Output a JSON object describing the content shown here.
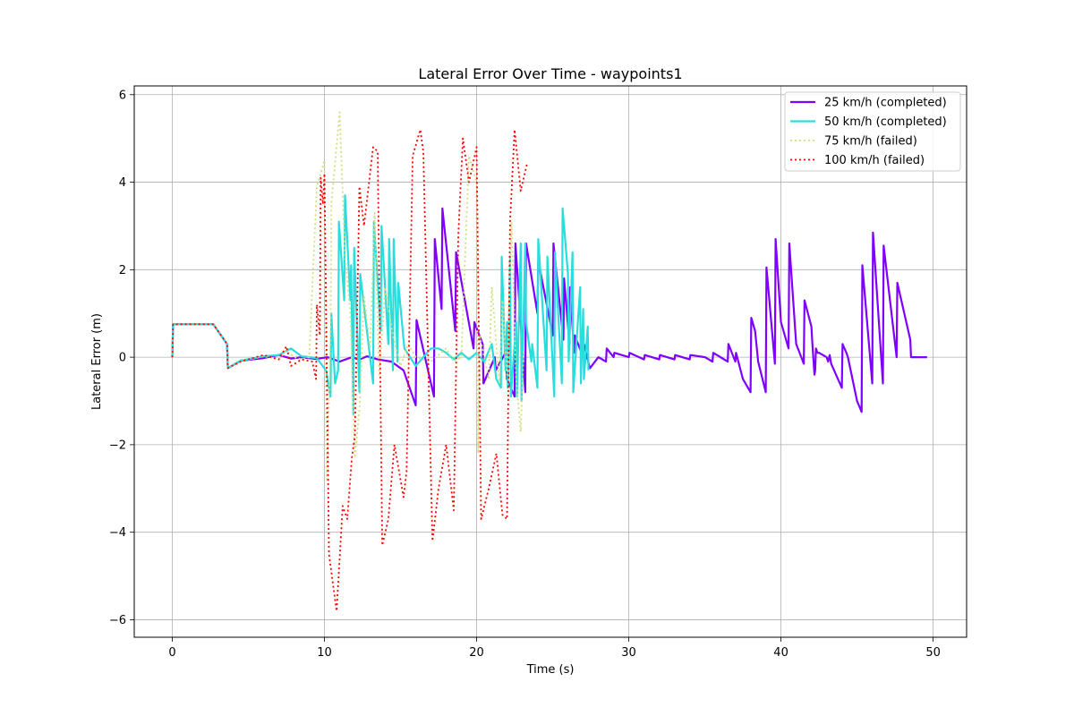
{
  "chart_data": {
    "type": "line",
    "title": "Lateral Error Over Time - waypoints1",
    "xlabel": "Time (s)",
    "ylabel": "Lateral Error (m)",
    "xlim": [
      -2.5,
      52.2
    ],
    "ylim": [
      -6.4,
      6.2
    ],
    "xticks": [
      0,
      10,
      20,
      30,
      40,
      50
    ],
    "yticks": [
      -6,
      -4,
      -2,
      0,
      2,
      4,
      6
    ],
    "xtick_labels": [
      "0",
      "10",
      "20",
      "30",
      "40",
      "50"
    ],
    "ytick_labels": [
      "−6",
      "−4",
      "−2",
      "0",
      "2",
      "4",
      "6"
    ],
    "grid": true,
    "legend_position": "upper-right",
    "series": [
      {
        "name": "25 km/h (completed)",
        "color": "#8000ff",
        "style": "solid",
        "x": [
          0,
          0.05,
          2.7,
          3.6,
          3.65,
          4.5,
          6,
          7,
          7.8,
          8.5,
          9.5,
          10.2,
          11,
          11.8,
          12.3,
          12.8,
          13.5,
          14.4,
          15.2,
          16,
          16.05,
          17.2,
          17.25,
          17.7,
          17.75,
          18.6,
          18.65,
          19.8,
          19.85,
          20.4,
          20.45,
          21.2,
          21.25,
          21.9,
          22,
          22.5,
          22.55,
          23.2,
          23.25,
          24,
          24.05,
          25,
          25.05,
          25.7,
          25.75,
          26.1,
          26.15,
          26.4,
          26.45,
          27,
          27.05,
          27.4,
          27.45,
          28,
          28.5,
          28.55,
          29,
          29.05,
          30,
          30.05,
          31,
          31.05,
          32,
          32.05,
          33,
          33.05,
          34,
          34.05,
          35,
          35.5,
          35.55,
          36.5,
          36.55,
          37,
          37.05,
          37.5,
          38,
          38.05,
          38.3,
          38.5,
          39,
          39.05,
          39.6,
          39.65,
          40,
          40.5,
          40.55,
          40.9,
          41,
          41.5,
          41.55,
          42,
          42.05,
          42.2,
          42.25,
          42.3,
          42.4,
          42.5,
          43,
          43.1,
          43.2,
          43.3,
          44,
          44.05,
          44.3,
          44.4,
          45,
          45.3,
          45.35,
          46,
          46.05,
          46.7,
          46.75,
          47.6,
          47.65,
          48.5,
          48.55,
          49.6
        ],
        "y": [
          0,
          0.75,
          0.75,
          0.3,
          -0.25,
          -0.08,
          -0.02,
          0.05,
          -0.03,
          0,
          -0.04,
          0,
          -0.1,
          0,
          -0.05,
          0.02,
          -0.05,
          -0.1,
          -0.3,
          -1.1,
          0.85,
          -0.9,
          2.7,
          1.1,
          3.4,
          0.6,
          2.4,
          0.2,
          0.8,
          0.3,
          -0.6,
          0,
          -0.3,
          0.1,
          -0.5,
          -0.9,
          2.6,
          -0.8,
          2.6,
          1,
          2.2,
          0.5,
          2.6,
          0.4,
          1.8,
          0.3,
          1.6,
          0.1,
          0.5,
          0,
          0.3,
          -0.2,
          -0.25,
          0,
          -0.1,
          0.2,
          0,
          0.1,
          0,
          0.1,
          -0.05,
          0.05,
          -0.05,
          0.05,
          -0.05,
          0.05,
          -0.05,
          0.05,
          0,
          -0.1,
          0.1,
          -0.1,
          0.3,
          -0.1,
          0.1,
          -0.5,
          -0.8,
          0.9,
          0.6,
          -0.1,
          -0.8,
          2.05,
          -0.15,
          2.7,
          0.8,
          0.2,
          2.6,
          0.8,
          0.3,
          -0.15,
          1.3,
          0.7,
          0.4,
          -0.4,
          -0.3,
          0.2,
          0.1,
          0.1,
          0,
          -0.1,
          0.05,
          -0.15,
          -0.7,
          0.3,
          0.1,
          0,
          -1,
          -1.25,
          2.1,
          -0.6,
          2.85,
          -0.6,
          2.55,
          0,
          1.7,
          0.4,
          0,
          0
        ]
      },
      {
        "name": "50 km/h (completed)",
        "color": "#2adddd",
        "style": "solid",
        "x": [
          0,
          0.05,
          2.7,
          3.6,
          3.65,
          4.5,
          6,
          7,
          7.8,
          8.5,
          9.5,
          10.1,
          10.4,
          10.45,
          10.7,
          10.9,
          10.95,
          11.3,
          11.35,
          11.7,
          11.75,
          11.9,
          11.95,
          12.3,
          12.35,
          13.2,
          13.25,
          13.7,
          13.75,
          14.2,
          14.25,
          14.5,
          14.55,
          14.8,
          14.85,
          15.2,
          15.25,
          16,
          17,
          17.5,
          18,
          18.5,
          19,
          19.5,
          20,
          20.5,
          21,
          21.3,
          21.6,
          21.65,
          21.9,
          22,
          22.05,
          22.2,
          22.25,
          22.6,
          22.65,
          22.9,
          22.95,
          23.2,
          23.25,
          23.6,
          23.65,
          24,
          24.05,
          24.6,
          24.65,
          25.1,
          25.15,
          25.6,
          25.65,
          26,
          26.05,
          26.3,
          26.35,
          26.8,
          26.85,
          27,
          27.05,
          27.3,
          27.35
        ],
        "y": [
          0,
          0.75,
          0.75,
          0.3,
          -0.25,
          -0.08,
          0.02,
          0.05,
          0.2,
          0.02,
          -0.02,
          -0.3,
          -0.9,
          1,
          -0.6,
          -0.3,
          3.1,
          1.3,
          3.7,
          1.3,
          2.1,
          -1.3,
          2.5,
          -0.8,
          1.9,
          -0.6,
          3.1,
          0.6,
          3,
          0.3,
          2.7,
          -0.3,
          2.7,
          -0.1,
          1.7,
          0.4,
          0.2,
          -0.2,
          0.2,
          0.2,
          0.1,
          -0.05,
          0.1,
          -0.05,
          0.1,
          -0.1,
          0.3,
          -0.5,
          -0.7,
          2.3,
          -0.3,
          0.8,
          -0.7,
          2.3,
          -0.9,
          0.8,
          -0.9,
          2.6,
          -1,
          2.6,
          0.8,
          -0.1,
          0.3,
          -0.7,
          2.7,
          -0.3,
          2.3,
          -0.9,
          2.4,
          -0.6,
          3.4,
          1.9,
          -0.1,
          2.4,
          -0.8,
          1.6,
          -0.6,
          1.1,
          -0.5,
          0.7,
          -0.3
        ]
      },
      {
        "name": "75 km/h (failed)",
        "color": "#d4dd80",
        "style": "dotted",
        "x": [
          0,
          0.05,
          2.7,
          3.6,
          3.65,
          4.5,
          6,
          7,
          7.5,
          8,
          8.5,
          9,
          9.5,
          10,
          10.15,
          10.3,
          10.4,
          10.45,
          11,
          11.35,
          11.7,
          12,
          12.3,
          12.6,
          13,
          13.3,
          13.6,
          14,
          14.5,
          15,
          15.5,
          16,
          17,
          18,
          18.5,
          19,
          19.5,
          20,
          20.1,
          20.2,
          20.5,
          20.8,
          21,
          21.5,
          21.7,
          22,
          22.3,
          22.6,
          22.9,
          23.1
        ],
        "y": [
          0,
          0.75,
          0.75,
          0.3,
          -0.25,
          -0.1,
          0.02,
          -0.05,
          0.15,
          0,
          -0.05,
          0,
          3.9,
          4.5,
          -2.8,
          -1,
          0.5,
          3.5,
          5.6,
          2.3,
          1,
          -2.3,
          -1.2,
          1.4,
          0.2,
          3.3,
          -0.4,
          1.6,
          0.5,
          -0.2,
          0.3,
          0,
          -0.1,
          0.2,
          -0.1,
          0,
          4.6,
          4,
          -2.2,
          0.5,
          0,
          -0.5,
          1.6,
          -0.6,
          1.3,
          -0.4,
          3.1,
          -0.5,
          -1.7,
          0.2
        ]
      },
      {
        "name": "100 km/h (failed)",
        "color": "#ff0000",
        "style": "dotted",
        "x": [
          0,
          0.05,
          2.7,
          3.6,
          3.65,
          4.5,
          6,
          7,
          7.5,
          7.8,
          8.5,
          9.2,
          9.45,
          9.5,
          9.7,
          9.75,
          9.9,
          10,
          10.3,
          10.8,
          11.2,
          11.5,
          11.8,
          12,
          12.3,
          12.6,
          13.2,
          13.5,
          13.8,
          14.2,
          14.6,
          15.2,
          15.4,
          15.8,
          16.3,
          16.5,
          17.1,
          17.5,
          18,
          18.5,
          18.8,
          19.1,
          19.5,
          20,
          20.3,
          20.8,
          21.3,
          21.7,
          22,
          22.2,
          22.5,
          22.9,
          23.3
        ],
        "y": [
          0,
          0.75,
          0.75,
          0.3,
          -0.25,
          -0.1,
          0.05,
          -0.05,
          0.25,
          -0.2,
          -0.05,
          -0.1,
          -0.5,
          1.2,
          0.5,
          4.1,
          3.5,
          4.2,
          -4.5,
          -5.8,
          -3.4,
          -3.7,
          -2.3,
          -1.8,
          3.9,
          3,
          4.8,
          4.7,
          -4.3,
          -3.7,
          -2,
          -3.2,
          -2.6,
          4.6,
          5.2,
          4.7,
          -4.2,
          -3,
          -2,
          -3.5,
          2.8,
          5,
          4,
          4.8,
          -3.7,
          -3,
          -2.2,
          -3.6,
          -3.7,
          3.1,
          5.2,
          3.8,
          4.4
        ]
      }
    ]
  }
}
